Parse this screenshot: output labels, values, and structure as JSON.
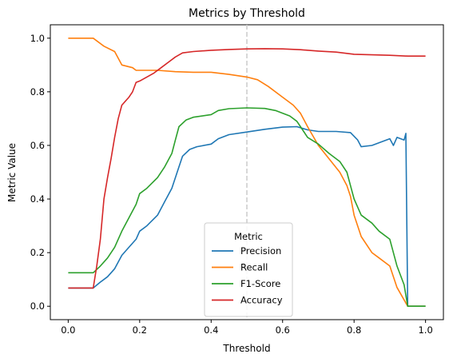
{
  "chart_data": {
    "type": "line",
    "title": "Metrics by Threshold",
    "xlabel": "Threshold",
    "ylabel": "Metric Value",
    "xlim": [
      -0.05,
      1.05
    ],
    "ylim": [
      -0.05,
      1.05
    ],
    "xticks": [
      "0.0",
      "0.2",
      "0.4",
      "0.6",
      "0.8",
      "1.0"
    ],
    "xtick_values": [
      0.0,
      0.2,
      0.4,
      0.6,
      0.8,
      1.0
    ],
    "yticks": [
      "0.0",
      "0.2",
      "0.4",
      "0.6",
      "0.8",
      "1.0"
    ],
    "ytick_values": [
      0.0,
      0.2,
      0.4,
      0.6,
      0.8,
      1.0
    ],
    "vline": {
      "x": 0.5,
      "color": "#cccccc",
      "style": "dashed"
    },
    "grid": false,
    "legend": {
      "title": "Metric",
      "placement": "lower-center"
    },
    "series": [
      {
        "name": "Precision",
        "color": "#1f77b4",
        "points": [
          [
            0.0,
            0.068
          ],
          [
            0.07,
            0.068
          ],
          [
            0.09,
            0.09
          ],
          [
            0.11,
            0.11
          ],
          [
            0.13,
            0.14
          ],
          [
            0.15,
            0.19
          ],
          [
            0.17,
            0.22
          ],
          [
            0.19,
            0.25
          ],
          [
            0.2,
            0.28
          ],
          [
            0.22,
            0.3
          ],
          [
            0.25,
            0.34
          ],
          [
            0.27,
            0.39
          ],
          [
            0.29,
            0.44
          ],
          [
            0.31,
            0.52
          ],
          [
            0.32,
            0.56
          ],
          [
            0.34,
            0.585
          ],
          [
            0.36,
            0.595
          ],
          [
            0.4,
            0.605
          ],
          [
            0.42,
            0.625
          ],
          [
            0.45,
            0.64
          ],
          [
            0.5,
            0.65
          ],
          [
            0.55,
            0.66
          ],
          [
            0.6,
            0.668
          ],
          [
            0.64,
            0.67
          ],
          [
            0.67,
            0.658
          ],
          [
            0.7,
            0.652
          ],
          [
            0.75,
            0.652
          ],
          [
            0.79,
            0.648
          ],
          [
            0.81,
            0.62
          ],
          [
            0.82,
            0.595
          ],
          [
            0.85,
            0.6
          ],
          [
            0.87,
            0.61
          ],
          [
            0.9,
            0.625
          ],
          [
            0.91,
            0.6
          ],
          [
            0.92,
            0.63
          ],
          [
            0.94,
            0.62
          ],
          [
            0.945,
            0.645
          ],
          [
            0.95,
            0.0
          ],
          [
            1.0,
            0.0
          ]
        ]
      },
      {
        "name": "Recall",
        "color": "#ff7f0e",
        "points": [
          [
            0.0,
            1.0
          ],
          [
            0.07,
            1.0
          ],
          [
            0.1,
            0.97
          ],
          [
            0.13,
            0.95
          ],
          [
            0.15,
            0.9
          ],
          [
            0.18,
            0.89
          ],
          [
            0.19,
            0.88
          ],
          [
            0.25,
            0.88
          ],
          [
            0.3,
            0.875
          ],
          [
            0.35,
            0.873
          ],
          [
            0.4,
            0.873
          ],
          [
            0.45,
            0.865
          ],
          [
            0.5,
            0.855
          ],
          [
            0.53,
            0.845
          ],
          [
            0.56,
            0.82
          ],
          [
            0.6,
            0.78
          ],
          [
            0.63,
            0.75
          ],
          [
            0.65,
            0.72
          ],
          [
            0.67,
            0.67
          ],
          [
            0.7,
            0.6
          ],
          [
            0.73,
            0.55
          ],
          [
            0.76,
            0.5
          ],
          [
            0.78,
            0.45
          ],
          [
            0.79,
            0.41
          ],
          [
            0.8,
            0.34
          ],
          [
            0.82,
            0.26
          ],
          [
            0.85,
            0.2
          ],
          [
            0.87,
            0.18
          ],
          [
            0.9,
            0.15
          ],
          [
            0.92,
            0.07
          ],
          [
            0.95,
            0.0
          ],
          [
            1.0,
            0.0
          ]
        ]
      },
      {
        "name": "F1-Score",
        "color": "#2ca02c",
        "points": [
          [
            0.0,
            0.125
          ],
          [
            0.07,
            0.125
          ],
          [
            0.09,
            0.15
          ],
          [
            0.11,
            0.18
          ],
          [
            0.13,
            0.22
          ],
          [
            0.15,
            0.28
          ],
          [
            0.17,
            0.33
          ],
          [
            0.19,
            0.38
          ],
          [
            0.2,
            0.42
          ],
          [
            0.22,
            0.44
          ],
          [
            0.25,
            0.48
          ],
          [
            0.27,
            0.52
          ],
          [
            0.29,
            0.57
          ],
          [
            0.3,
            0.62
          ],
          [
            0.31,
            0.67
          ],
          [
            0.33,
            0.695
          ],
          [
            0.35,
            0.705
          ],
          [
            0.4,
            0.715
          ],
          [
            0.42,
            0.73
          ],
          [
            0.45,
            0.737
          ],
          [
            0.5,
            0.74
          ],
          [
            0.55,
            0.738
          ],
          [
            0.58,
            0.73
          ],
          [
            0.62,
            0.71
          ],
          [
            0.64,
            0.69
          ],
          [
            0.65,
            0.67
          ],
          [
            0.67,
            0.63
          ],
          [
            0.7,
            0.605
          ],
          [
            0.73,
            0.57
          ],
          [
            0.76,
            0.54
          ],
          [
            0.78,
            0.5
          ],
          [
            0.79,
            0.45
          ],
          [
            0.8,
            0.4
          ],
          [
            0.82,
            0.34
          ],
          [
            0.85,
            0.31
          ],
          [
            0.87,
            0.28
          ],
          [
            0.9,
            0.25
          ],
          [
            0.92,
            0.15
          ],
          [
            0.94,
            0.08
          ],
          [
            0.95,
            0.0
          ],
          [
            1.0,
            0.0
          ]
        ]
      },
      {
        "name": "Accuracy",
        "color": "#d62728",
        "points": [
          [
            0.0,
            0.068
          ],
          [
            0.07,
            0.068
          ],
          [
            0.08,
            0.15
          ],
          [
            0.09,
            0.25
          ],
          [
            0.1,
            0.4
          ],
          [
            0.11,
            0.48
          ],
          [
            0.12,
            0.55
          ],
          [
            0.13,
            0.63
          ],
          [
            0.14,
            0.7
          ],
          [
            0.15,
            0.75
          ],
          [
            0.17,
            0.78
          ],
          [
            0.18,
            0.8
          ],
          [
            0.19,
            0.835
          ],
          [
            0.2,
            0.84
          ],
          [
            0.22,
            0.855
          ],
          [
            0.24,
            0.87
          ],
          [
            0.26,
            0.89
          ],
          [
            0.28,
            0.91
          ],
          [
            0.3,
            0.93
          ],
          [
            0.32,
            0.945
          ],
          [
            0.35,
            0.95
          ],
          [
            0.4,
            0.955
          ],
          [
            0.45,
            0.958
          ],
          [
            0.5,
            0.96
          ],
          [
            0.55,
            0.961
          ],
          [
            0.6,
            0.96
          ],
          [
            0.65,
            0.957
          ],
          [
            0.7,
            0.952
          ],
          [
            0.75,
            0.948
          ],
          [
            0.8,
            0.94
          ],
          [
            0.85,
            0.938
          ],
          [
            0.9,
            0.936
          ],
          [
            0.95,
            0.933
          ],
          [
            1.0,
            0.933
          ]
        ]
      }
    ]
  }
}
